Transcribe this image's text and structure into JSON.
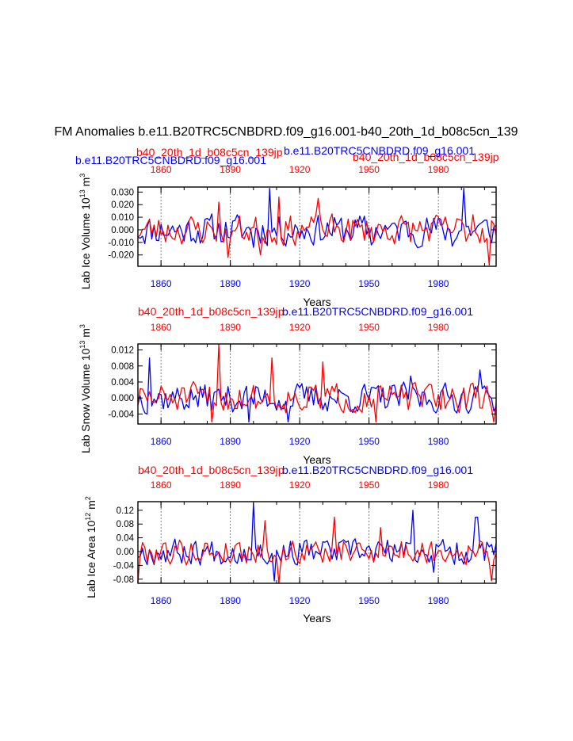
{
  "title": "FM Anomalies b.e11.B20TRC5CNBDRD.f09_g16.001-b40_20th_1d_b08c5cn_139",
  "top_legend": {
    "blue_case": "b.e11.B20TRC5CNBDRD.f09_g16.001",
    "red_case": "b40_20th_1d_b08c5cn_139jp"
  },
  "colors": {
    "blue": "#0000ff",
    "red": "#ff0000",
    "axis": "#000000",
    "guide": "#666666"
  },
  "chart_data": [
    {
      "type": "line",
      "title_blue": "b.e11.B20TRC5CNBDRD.f09_g16.001",
      "title_red": "b40_20th_1d_b08c5cn_139jp",
      "ylabel": "Lab Ice Volume 10",
      "ylabel_exp": "13",
      "ylabel_unit": "m",
      "ylabel_unit_exp": "3",
      "xlabel": "Years",
      "xlim": [
        1850,
        2005
      ],
      "ylim": [
        -0.029,
        0.034
      ],
      "yticks": [
        -0.02,
        -0.01,
        0.0,
        0.01,
        0.02,
        0.03
      ],
      "ytick_labels": [
        "-0.020",
        "-0.010",
        "0.000",
        "0.010",
        "0.020",
        "0.030"
      ],
      "xticks": [
        1860,
        1890,
        1920,
        1950,
        1980
      ],
      "xtick_labels": [
        "1860",
        "1890",
        "1920",
        "1950",
        "1980"
      ],
      "series": [
        {
          "name": "b.e11.B20TRC5CNBDRD.f09_g16.001",
          "color": "#0000ff",
          "years": "1850-2005",
          "seed": 11,
          "amp": 0.0115,
          "spikes": [
            [
              1907,
              0.033
            ],
            [
              1991,
              0.033
            ],
            [
              1900,
              -0.014
            ],
            [
              1951,
              -0.012
            ],
            [
              1960,
              0.005
            ],
            [
              1986,
              -0.013
            ]
          ]
        },
        {
          "name": "b40_20th_1d_b08c5cn_139jp",
          "color": "#ff0000",
          "years": "1850-2005",
          "seed": 23,
          "amp": 0.011,
          "spikes": [
            [
              1885,
              0.022
            ],
            [
              1889,
              -0.022
            ],
            [
              1911,
              0.026
            ],
            [
              1928,
              0.025
            ],
            [
              1903,
              -0.02
            ],
            [
              2002,
              -0.028
            ],
            [
              1995,
              0.012
            ]
          ]
        }
      ]
    },
    {
      "type": "line",
      "title_blue": "b.e11.B20TRC5CNBDRD.f09_g16.001",
      "title_red": "b40_20th_1d_b08c5cn_139jp",
      "ylabel": "Lab Snow Volume 10",
      "ylabel_exp": "13",
      "ylabel_unit": "m",
      "ylabel_unit_exp": "3",
      "xlabel": "Years",
      "xlim": [
        1850,
        2005
      ],
      "ylim": [
        -0.0065,
        0.0135
      ],
      "yticks": [
        -0.004,
        0.0,
        0.004,
        0.008,
        0.012
      ],
      "ytick_labels": [
        "-0.004",
        "0.000",
        "0.004",
        "0.008",
        "0.012"
      ],
      "xticks": [
        1860,
        1890,
        1920,
        1950,
        1980
      ],
      "xtick_labels": [
        "1860",
        "1890",
        "1920",
        "1950",
        "1980"
      ],
      "series": [
        {
          "name": "b.e11.B20TRC5CNBDRD.f09_g16.001",
          "color": "#0000ff",
          "years": "1850-2005",
          "seed": 37,
          "amp": 0.0034,
          "spikes": [
            [
              1855,
              0.01
            ],
            [
              1898,
              -0.006
            ],
            [
              1968,
              0.0055
            ],
            [
              1998,
              0.007
            ],
            [
              1915,
              -0.006
            ]
          ]
        },
        {
          "name": "b40_20th_1d_b08c5cn_139jp",
          "color": "#ff0000",
          "years": "1850-2005",
          "seed": 51,
          "amp": 0.0034,
          "spikes": [
            [
              1885,
              0.0135
            ],
            [
              1908,
              0.01
            ],
            [
              1930,
              0.009
            ],
            [
              1953,
              -0.006
            ],
            [
              1882,
              -0.006
            ],
            [
              2004,
              -0.006
            ]
          ]
        }
      ]
    },
    {
      "type": "line",
      "title_blue": "b.e11.B20TRC5CNBDRD.f09_g16.001",
      "title_red": "b40_20th_1d_b08c5cn_139jp",
      "ylabel": "Lab Ice Area 10",
      "ylabel_exp": "12",
      "ylabel_unit": "m",
      "ylabel_unit_exp": "2",
      "xlabel": "Years",
      "xlim": [
        1850,
        2005
      ],
      "ylim": [
        -0.092,
        0.145
      ],
      "yticks": [
        -0.08,
        -0.04,
        0.0,
        0.04,
        0.08,
        0.12
      ],
      "ytick_labels": [
        "-0.08",
        "-0.04",
        "0.00",
        "0.04",
        "0.08",
        "0.12"
      ],
      "xticks": [
        1860,
        1890,
        1920,
        1950,
        1980
      ],
      "xtick_labels": [
        "1860",
        "1890",
        "1920",
        "1950",
        "1980"
      ],
      "series": [
        {
          "name": "b.e11.B20TRC5CNBDRD.f09_g16.001",
          "color": "#0000ff",
          "years": "1850-2005",
          "seed": 67,
          "amp": 0.035,
          "spikes": [
            [
              1900,
              0.14
            ],
            [
              1969,
              0.12
            ],
            [
              1996,
              0.1
            ],
            [
              1997,
              0.1
            ],
            [
              1909,
              -0.085
            ],
            [
              1978,
              -0.06
            ]
          ]
        },
        {
          "name": "b40_20th_1d_b08c5cn_139jp",
          "color": "#ff0000",
          "years": "1850-2005",
          "seed": 79,
          "amp": 0.034,
          "spikes": [
            [
              1905,
              0.09
            ],
            [
              1935,
              0.1
            ],
            [
              1850,
              -0.09
            ],
            [
              2003,
              -0.085
            ],
            [
              1911,
              -0.092
            ],
            [
              1955,
              0.07
            ]
          ]
        }
      ]
    }
  ]
}
